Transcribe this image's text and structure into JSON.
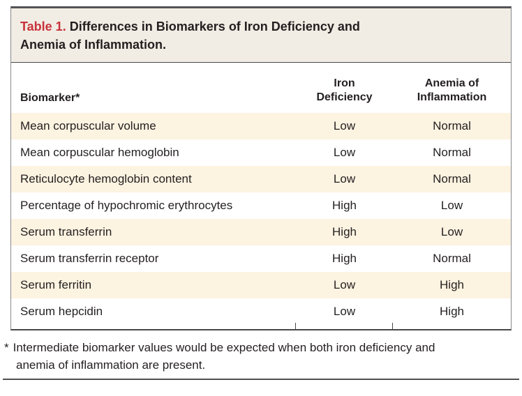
{
  "figure": {
    "label": "Table 1.",
    "title": "Differences in Biomarkers of Iron Deficiency and Anemia of Inflammation.",
    "columns": [
      "Biomarker*",
      "Iron Deficiency",
      "Anemia of Inflammation"
    ],
    "rows": [
      {
        "biomarker": "Mean corpuscular volume",
        "iron_deficiency": "Low",
        "anemia_of_inflammation": "Normal"
      },
      {
        "biomarker": "Mean corpuscular hemoglobin",
        "iron_deficiency": "Low",
        "anemia_of_inflammation": "Normal"
      },
      {
        "biomarker": "Reticulocyte hemoglobin content",
        "iron_deficiency": "Low",
        "anemia_of_inflammation": "Normal"
      },
      {
        "biomarker": "Percentage of hypochromic erythrocytes",
        "iron_deficiency": "High",
        "anemia_of_inflammation": "Low"
      },
      {
        "biomarker": "Serum transferrin",
        "iron_deficiency": "High",
        "anemia_of_inflammation": "Low"
      },
      {
        "biomarker": "Serum transferrin receptor",
        "iron_deficiency": "High",
        "anemia_of_inflammation": "Normal"
      },
      {
        "biomarker": "Serum ferritin",
        "iron_deficiency": "Low",
        "anemia_of_inflammation": "High"
      },
      {
        "biomarker": "Serum hepcidin",
        "iron_deficiency": "Low",
        "anemia_of_inflammation": "High"
      }
    ],
    "footnote": {
      "marker": "*",
      "text": "Intermediate biomarker values would be expected when both iron deficiency and anemia of inflammation are present."
    },
    "colors": {
      "title_label_red": "#c8323b",
      "title_band_bg": "#f1ede4",
      "row_shade_bg": "#fdf3e1",
      "text": "#231f20",
      "border_dark": "#47474a",
      "border_gray": "#87888c"
    }
  }
}
